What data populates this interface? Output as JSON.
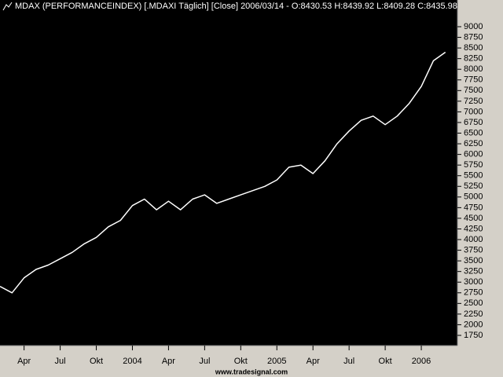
{
  "chart_data": {
    "type": "line",
    "title": "MDAX (PERFORMANCEINDEX) [.MDAXI  Täglich] [Close] 2006/03/14 - O:8430.53 H:8439.92 L:8409.28 C:8435.98",
    "footer": "www.tradesignal.com",
    "color": "#ffffff",
    "x": [
      "2003-02",
      "2003-03",
      "2003-04",
      "2003-05",
      "2003-06",
      "2003-07",
      "2003-08",
      "2003-09",
      "2003-10",
      "2003-11",
      "2003-12",
      "2004-01",
      "2004-02",
      "2004-03",
      "2004-04",
      "2004-05",
      "2004-06",
      "2004-07",
      "2004-08",
      "2004-09",
      "2004-10",
      "2004-11",
      "2004-12",
      "2005-01",
      "2005-02",
      "2005-03",
      "2005-04",
      "2005-05",
      "2005-06",
      "2005-07",
      "2005-08",
      "2005-09",
      "2005-10",
      "2005-11",
      "2005-12",
      "2006-01",
      "2006-02",
      "2006-03"
    ],
    "values": [
      2900,
      2750,
      3100,
      3300,
      3400,
      3550,
      3700,
      3900,
      4050,
      4300,
      4450,
      4800,
      4950,
      4700,
      4900,
      4700,
      4950,
      5050,
      4850,
      4950,
      5050,
      5150,
      5250,
      5400,
      5700,
      5750,
      5550,
      5850,
      6250,
      6550,
      6800,
      6900,
      6700,
      6900,
      7200,
      7600,
      8200,
      8400
    ],
    "xlim": [
      "2003-02",
      "2006-04"
    ],
    "xticks": [
      {
        "value": "2003-04",
        "label": "Apr"
      },
      {
        "value": "2003-07",
        "label": "Jul"
      },
      {
        "value": "2003-10",
        "label": "Okt"
      },
      {
        "value": "2004-01",
        "label": "2004"
      },
      {
        "value": "2004-04",
        "label": "Apr"
      },
      {
        "value": "2004-07",
        "label": "Jul"
      },
      {
        "value": "2004-10",
        "label": "Okt"
      },
      {
        "value": "2005-01",
        "label": "2005"
      },
      {
        "value": "2005-04",
        "label": "Apr"
      },
      {
        "value": "2005-07",
        "label": "Jul"
      },
      {
        "value": "2005-10",
        "label": "Okt"
      },
      {
        "value": "2006-01",
        "label": "2006"
      }
    ],
    "ylim": [
      1510,
      9627
    ],
    "yticks": [
      1750,
      2000,
      2250,
      2500,
      2750,
      3000,
      3250,
      3500,
      3750,
      4000,
      4250,
      4500,
      4750,
      5000,
      5250,
      5500,
      5750,
      6000,
      6250,
      6500,
      6750,
      7000,
      7250,
      7500,
      7750,
      8000,
      8250,
      8500,
      8750,
      9000
    ]
  }
}
